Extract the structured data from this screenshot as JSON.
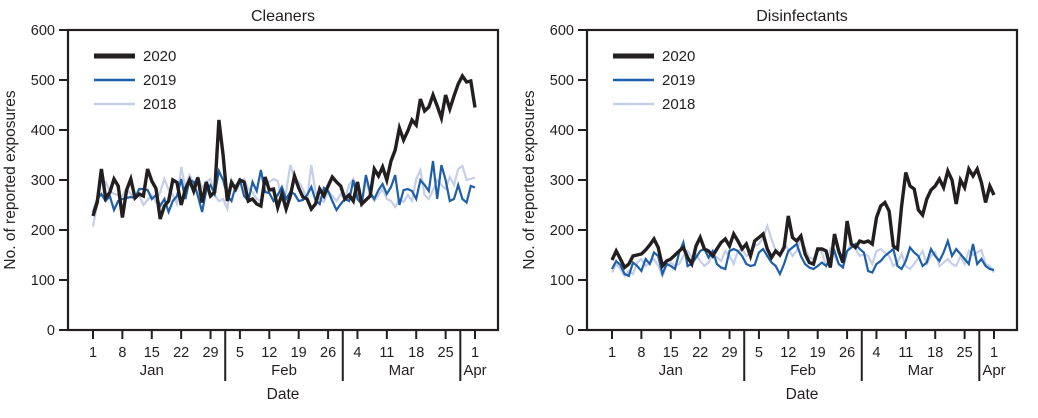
{
  "figure": {
    "ink_color": "#231f20",
    "background": "#ffffff",
    "ylabel": "No. of reported exposures",
    "xlabel": "Date"
  },
  "chart_data": [
    {
      "type": "line",
      "title": "Cleaners",
      "xlabel": "Date",
      "ylabel": "No. of reported exposures",
      "ylim": [
        0,
        600
      ],
      "yticks": [
        0,
        100,
        200,
        300,
        400,
        500,
        600
      ],
      "grid": false,
      "legend_position": "top-left-inside",
      "x_unit": "day offset from Jan 1 (Jan 1 = 0, Apr 1 = 91)",
      "xticks": [
        {
          "day": 0,
          "label": "1"
        },
        {
          "day": 7,
          "label": "8"
        },
        {
          "day": 14,
          "label": "15"
        },
        {
          "day": 21,
          "label": "22"
        },
        {
          "day": 28,
          "label": "29"
        },
        {
          "day": 35,
          "label": "5"
        },
        {
          "day": 42,
          "label": "12"
        },
        {
          "day": 49,
          "label": "19"
        },
        {
          "day": 56,
          "label": "26"
        },
        {
          "day": 63,
          "label": "4"
        },
        {
          "day": 70,
          "label": "11"
        },
        {
          "day": 77,
          "label": "18"
        },
        {
          "day": 84,
          "label": "25"
        },
        {
          "day": 91,
          "label": "1"
        }
      ],
      "month_labels": [
        {
          "day": 14,
          "label": "Jan"
        },
        {
          "day": 45.5,
          "label": "Feb"
        },
        {
          "day": 73.5,
          "label": "Mar"
        },
        {
          "day": 91,
          "label": "Apr"
        }
      ],
      "month_dividers": [
        31.5,
        59.5,
        87.5
      ],
      "series": [
        {
          "name": "2020",
          "color": "#231f20",
          "width": 3.4,
          "values": [
            228,
            255,
            322,
            264,
            275,
            302,
            288,
            225,
            280,
            302,
            264,
            272,
            268,
            322,
            298,
            283,
            222,
            248,
            258,
            300,
            295,
            250,
            282,
            300,
            278,
            305,
            255,
            296,
            268,
            276,
            420,
            350,
            258,
            295,
            282,
            300,
            296,
            258,
            262,
            252,
            248,
            306,
            280,
            282,
            245,
            272,
            242,
            268,
            308,
            284,
            266,
            262,
            242,
            252,
            282,
            268,
            288,
            306,
            296,
            288,
            262,
            270,
            258,
            296,
            252,
            260,
            268,
            322,
            308,
            326,
            300,
            338,
            360,
            404,
            380,
            398,
            420,
            410,
            462,
            438,
            446,
            470,
            448,
            424,
            470,
            442,
            468,
            492,
            508,
            496,
            498,
            445
          ]
        },
        {
          "name": "2019",
          "color": "#1e5fa8",
          "width": 2.2,
          "values": [
            235,
            262,
            272,
            258,
            268,
            240,
            258,
            262,
            264,
            266,
            264,
            282,
            282,
            280,
            262,
            270,
            248,
            262,
            236,
            258,
            268,
            302,
            262,
            300,
            296,
            268,
            236,
            280,
            290,
            272,
            318,
            300,
            268,
            258,
            288,
            300,
            268,
            258,
            296,
            278,
            320,
            276,
            274,
            258,
            270,
            286,
            262,
            276,
            272,
            258,
            260,
            270,
            286,
            260,
            252,
            284,
            278,
            258,
            240,
            252,
            262,
            258,
            300,
            262,
            252,
            310,
            275,
            262,
            280,
            292,
            272,
            286,
            310,
            250,
            280,
            282,
            278,
            262,
            300,
            290,
            278,
            338,
            262,
            330,
            300,
            258,
            262,
            290,
            262,
            255,
            288,
            285
          ]
        },
        {
          "name": "2018",
          "color": "#c5cfe8",
          "width": 2.2,
          "values": [
            207,
            252,
            298,
            296,
            278,
            272,
            270,
            268,
            282,
            272,
            262,
            270,
            250,
            260,
            270,
            256,
            276,
            302,
            280,
            270,
            252,
            326,
            284,
            310,
            296,
            306,
            284,
            296,
            302,
            270,
            258,
            262,
            242,
            300,
            278,
            296,
            302,
            282,
            276,
            262,
            258,
            300,
            296,
            302,
            298,
            262,
            276,
            330,
            302,
            296,
            282,
            262,
            330,
            276,
            262,
            256,
            278,
            268,
            258,
            272,
            262,
            290,
            302,
            270,
            250,
            300,
            270,
            258,
            270,
            282,
            262,
            258,
            246,
            262,
            256,
            270,
            258,
            302,
            320,
            270,
            262,
            280,
            300,
            290,
            282,
            306,
            290,
            322,
            328,
            300,
            302,
            305
          ]
        }
      ]
    },
    {
      "type": "line",
      "title": "Disinfectants",
      "xlabel": "Date",
      "ylabel": "No. of reported exposures",
      "ylim": [
        0,
        600
      ],
      "yticks": [
        0,
        100,
        200,
        300,
        400,
        500,
        600
      ],
      "grid": false,
      "legend_position": "top-left-inside",
      "x_unit": "day offset from Jan 1 (Jan 1 = 0, Apr 1 = 91)",
      "xticks": [
        {
          "day": 0,
          "label": "1"
        },
        {
          "day": 7,
          "label": "8"
        },
        {
          "day": 14,
          "label": "15"
        },
        {
          "day": 21,
          "label": "22"
        },
        {
          "day": 28,
          "label": "29"
        },
        {
          "day": 35,
          "label": "5"
        },
        {
          "day": 42,
          "label": "12"
        },
        {
          "day": 49,
          "label": "19"
        },
        {
          "day": 56,
          "label": "26"
        },
        {
          "day": 63,
          "label": "4"
        },
        {
          "day": 70,
          "label": "11"
        },
        {
          "day": 77,
          "label": "18"
        },
        {
          "day": 84,
          "label": "25"
        },
        {
          "day": 91,
          "label": "1"
        }
      ],
      "month_labels": [
        {
          "day": 14,
          "label": "Jan"
        },
        {
          "day": 45.5,
          "label": "Feb"
        },
        {
          "day": 73.5,
          "label": "Mar"
        },
        {
          "day": 91,
          "label": "Apr"
        }
      ],
      "month_dividers": [
        31.5,
        59.5,
        87.5
      ],
      "series": [
        {
          "name": "2020",
          "color": "#231f20",
          "width": 3.4,
          "values": [
            140,
            158,
            142,
            125,
            132,
            148,
            150,
            152,
            160,
            170,
            182,
            165,
            128,
            138,
            142,
            150,
            158,
            165,
            145,
            132,
            168,
            185,
            162,
            158,
            148,
            162,
            175,
            182,
            168,
            192,
            178,
            162,
            172,
            148,
            178,
            185,
            192,
            162,
            145,
            158,
            150,
            165,
            228,
            185,
            178,
            188,
            152,
            135,
            132,
            162,
            162,
            158,
            125,
            192,
            158,
            135,
            218,
            172,
            165,
            178,
            175,
            178,
            172,
            225,
            248,
            255,
            238,
            168,
            162,
            248,
            315,
            288,
            282,
            240,
            230,
            262,
            280,
            288,
            302,
            285,
            318,
            300,
            252,
            300,
            285,
            322,
            308,
            322,
            295,
            255,
            288,
            270
          ]
        },
        {
          "name": "2019",
          "color": "#1e5fa8",
          "width": 2.2,
          "values": [
            122,
            138,
            130,
            112,
            108,
            135,
            128,
            118,
            142,
            132,
            155,
            148,
            112,
            132,
            128,
            122,
            155,
            175,
            128,
            132,
            145,
            158,
            162,
            145,
            158,
            132,
            125,
            122,
            158,
            162,
            158,
            148,
            132,
            128,
            130,
            155,
            162,
            148,
            135,
            128,
            112,
            132,
            158,
            165,
            172,
            148,
            132,
            125,
            122,
            128,
            135,
            128,
            142,
            158,
            132,
            125,
            158,
            165,
            172,
            162,
            155,
            118,
            115,
            132,
            138,
            148,
            155,
            162,
            128,
            122,
            138,
            165,
            155,
            148,
            128,
            135,
            162,
            148,
            138,
            155,
            178,
            148,
            162,
            152,
            142,
            132,
            172,
            132,
            142,
            128,
            122,
            120
          ]
        },
        {
          "name": "2018",
          "color": "#c5cfe8",
          "width": 2.2,
          "values": [
            115,
            132,
            122,
            108,
            118,
            112,
            135,
            142,
            128,
            135,
            142,
            128,
            108,
            128,
            135,
            128,
            132,
            148,
            158,
            145,
            152,
            138,
            128,
            135,
            152,
            145,
            138,
            158,
            148,
            132,
            158,
            162,
            148,
            155,
            168,
            172,
            185,
            208,
            182,
            158,
            148,
            172,
            162,
            148,
            158,
            185,
            162,
            145,
            142,
            162,
            155,
            128,
            162,
            148,
            132,
            128,
            158,
            172,
            162,
            148,
            152,
            148,
            132,
            158,
            162,
            155,
            148,
            128,
            135,
            152,
            128,
            122,
            132,
            145,
            158,
            132,
            148,
            155,
            128,
            135,
            142,
            132,
            128,
            148,
            132,
            158,
            150,
            155,
            160,
            132,
            128,
            115
          ]
        }
      ]
    }
  ]
}
